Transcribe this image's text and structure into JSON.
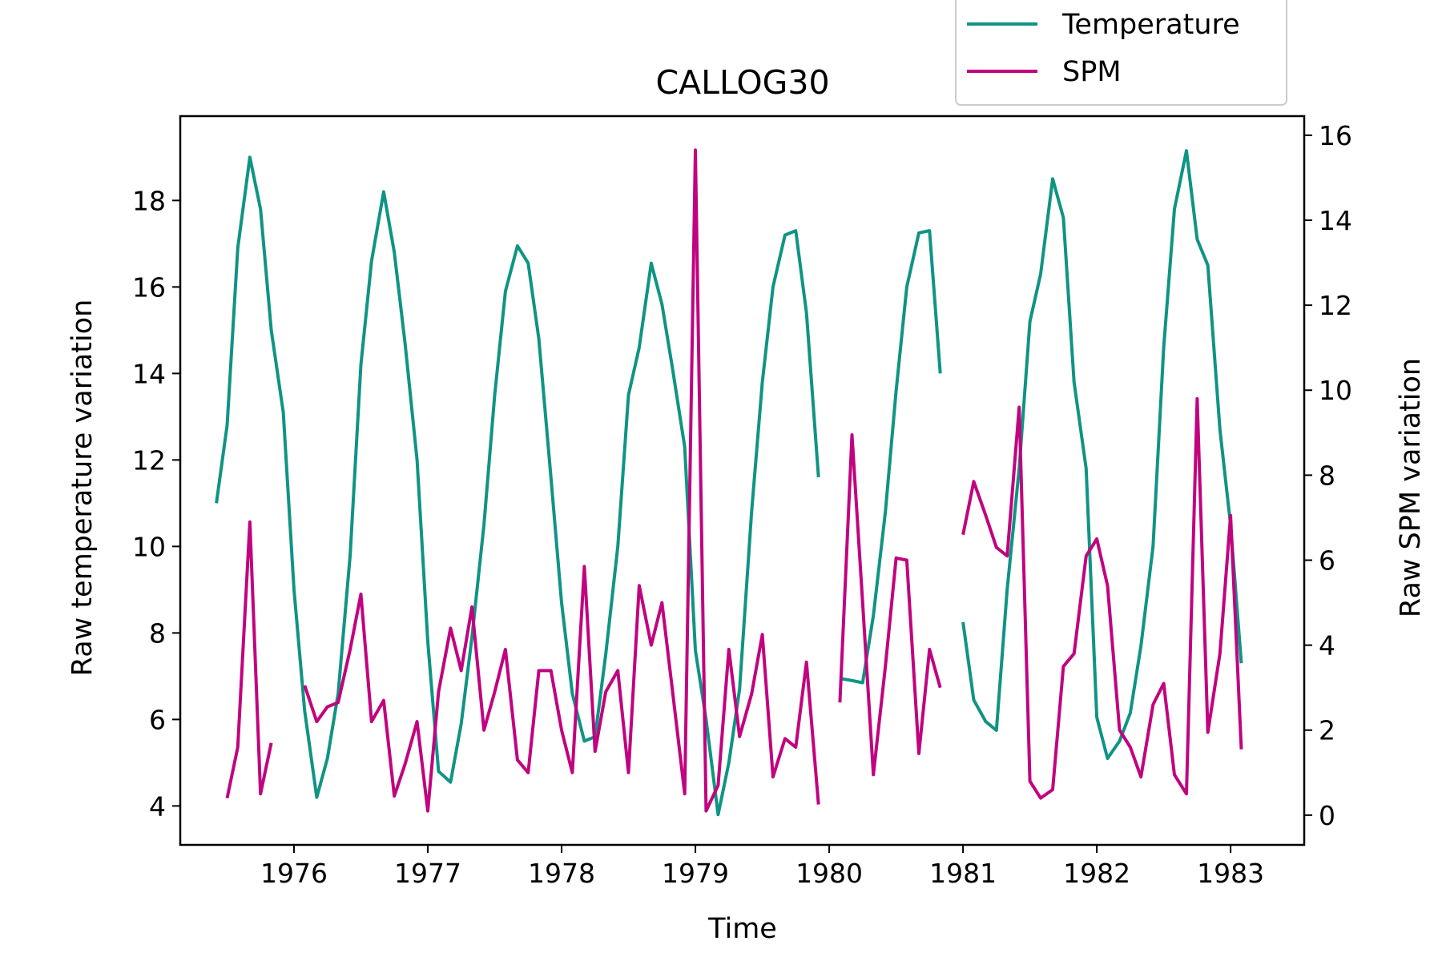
{
  "chart_data": {
    "type": "line",
    "title": "CALLOG30",
    "xlabel": "Time",
    "ylabel_left": "Raw temperature variation",
    "ylabel_right": "Raw SPM variation",
    "xlim": [
      1975.15,
      1983.55
    ],
    "ylim_left": [
      3.1,
      19.95
    ],
    "ylim_right": [
      -0.7,
      16.45
    ],
    "x_ticks": [
      1976,
      1977,
      1978,
      1979,
      1980,
      1981,
      1982,
      1983
    ],
    "x_tick_labels": [
      "1976",
      "1977",
      "1978",
      "1979",
      "1980",
      "1981",
      "1982",
      "1983"
    ],
    "y_ticks_left": [
      4,
      6,
      8,
      10,
      12,
      14,
      16,
      18
    ],
    "y_tick_labels_left": [
      "4",
      "6",
      "8",
      "10",
      "12",
      "14",
      "16",
      "18"
    ],
    "y_ticks_right": [
      0,
      2,
      4,
      6,
      8,
      10,
      12,
      14,
      16
    ],
    "y_tick_labels_right": [
      "0",
      "2",
      "4",
      "6",
      "8",
      "10",
      "12",
      "14",
      "16"
    ],
    "grid": false,
    "legend_position": "top-right-outside",
    "series": [
      {
        "name": "Temperature",
        "axis": "left",
        "color": "#0f9484",
        "segments": [
          {
            "x": [
              1975.42,
              1975.5,
              1975.58,
              1975.67,
              1975.75,
              1975.83,
              1975.92,
              1976.0,
              1976.08,
              1976.17,
              1976.25,
              1976.33,
              1976.42,
              1976.5,
              1976.58,
              1976.67,
              1976.75,
              1976.83,
              1976.92,
              1977.0,
              1977.08,
              1977.17,
              1977.25,
              1977.33,
              1977.42,
              1977.5,
              1977.58,
              1977.67,
              1977.75,
              1977.83,
              1977.92,
              1978.0,
              1978.08,
              1978.17,
              1978.25,
              1978.33,
              1978.42,
              1978.5,
              1978.58,
              1978.67,
              1978.75,
              1978.83,
              1978.92,
              1979.0,
              1979.08,
              1979.17,
              1979.25,
              1979.33,
              1979.42,
              1979.5,
              1979.58,
              1979.67,
              1979.75,
              1979.83,
              1979.92
            ],
            "y": [
              11.0,
              12.8,
              16.9,
              19.0,
              17.8,
              15.0,
              13.1,
              9.0,
              6.2,
              4.2,
              5.1,
              6.6,
              9.8,
              14.2,
              16.6,
              18.2,
              16.8,
              14.7,
              12.0,
              7.8,
              4.8,
              4.55,
              5.9,
              7.9,
              10.5,
              13.5,
              15.9,
              16.95,
              16.55,
              14.8,
              11.6,
              8.7,
              6.6,
              5.5,
              5.6,
              7.5,
              10.0,
              13.5,
              14.6,
              16.55,
              15.6,
              14.1,
              12.3,
              7.6,
              6.0,
              3.8,
              5.0,
              6.7,
              10.8,
              13.8,
              16.0,
              17.2,
              17.3,
              15.4,
              11.6
            ]
          },
          {
            "x": [
              1980.08,
              1980.17,
              1980.25,
              1980.33,
              1980.42,
              1980.5,
              1980.58,
              1980.67,
              1980.75,
              1980.83
            ],
            "y": [
              6.95,
              6.9,
              6.85,
              8.4,
              10.8,
              13.6,
              16.0,
              17.25,
              17.3,
              14.0
            ]
          },
          {
            "x": [
              1981.0,
              1981.08,
              1981.17,
              1981.25,
              1981.33,
              1981.42,
              1981.5,
              1981.58,
              1981.67,
              1981.75,
              1981.83,
              1981.92,
              1982.0,
              1982.08,
              1982.17,
              1982.25,
              1982.33,
              1982.42,
              1982.5,
              1982.58,
              1982.67,
              1982.75,
              1982.83,
              1982.92,
              1983.0,
              1983.08
            ],
            "y": [
              8.25,
              6.45,
              5.95,
              5.75,
              9.0,
              11.8,
              15.2,
              16.3,
              18.5,
              17.6,
              13.8,
              11.8,
              6.05,
              5.1,
              5.5,
              6.15,
              7.7,
              10.0,
              14.6,
              17.8,
              19.15,
              17.1,
              16.5,
              12.7,
              10.5,
              7.3
            ]
          }
        ]
      },
      {
        "name": "SPM",
        "axis": "right",
        "color": "#c1037f",
        "segments": [
          {
            "x": [
              1975.5,
              1975.58,
              1975.67,
              1975.75,
              1975.83
            ],
            "y": [
              0.4,
              1.6,
              6.9,
              0.5,
              1.7
            ]
          },
          {
            "x": [
              1976.08,
              1976.17,
              1976.25,
              1976.33,
              1976.42,
              1976.5,
              1976.58,
              1976.67,
              1976.75,
              1976.83,
              1976.92,
              1977.0,
              1977.08,
              1977.17,
              1977.25,
              1977.33,
              1977.42,
              1977.5,
              1977.58,
              1977.67,
              1977.75,
              1977.83,
              1977.92,
              1978.0,
              1978.08,
              1978.17,
              1978.25,
              1978.33,
              1978.42,
              1978.5,
              1978.58,
              1978.67,
              1978.75,
              1978.83,
              1978.92,
              1979.0,
              1979.08,
              1979.17,
              1979.25,
              1979.33,
              1979.42,
              1979.5,
              1979.58,
              1979.67,
              1979.75,
              1979.83,
              1979.92
            ],
            "y": [
              3.05,
              2.2,
              2.55,
              2.65,
              3.9,
              5.2,
              2.2,
              2.7,
              0.45,
              1.2,
              2.2,
              0.1,
              2.9,
              4.4,
              3.4,
              4.9,
              2.0,
              2.9,
              3.9,
              1.3,
              1.0,
              3.4,
              3.4,
              2.0,
              1.0,
              5.85,
              1.5,
              2.9,
              3.4,
              1.0,
              5.4,
              4.0,
              5.0,
              2.9,
              0.5,
              15.65,
              0.1,
              0.7,
              3.9,
              1.85,
              2.85,
              4.25,
              0.9,
              1.8,
              1.6,
              3.6,
              0.25
            ]
          },
          {
            "x": [
              1980.08,
              1980.17,
              1980.25,
              1980.33,
              1980.42,
              1980.5,
              1980.58,
              1980.67,
              1980.75,
              1980.83
            ],
            "y": [
              2.65,
              8.95,
              5.0,
              0.95,
              3.5,
              6.05,
              6.0,
              1.45,
              3.9,
              3.0
            ]
          },
          {
            "x": [
              1981.0,
              1981.08,
              1981.17,
              1981.25,
              1981.33,
              1981.42,
              1981.5,
              1981.58,
              1981.67,
              1981.75,
              1981.83,
              1981.92,
              1982.0,
              1982.08,
              1982.17,
              1982.25,
              1982.33,
              1982.42,
              1982.5,
              1982.58,
              1982.67,
              1982.75,
              1982.83,
              1982.92,
              1983.0,
              1983.08
            ],
            "y": [
              6.6,
              7.85,
              7.05,
              6.3,
              6.1,
              9.6,
              0.8,
              0.4,
              0.6,
              3.5,
              3.8,
              6.1,
              6.5,
              5.4,
              2.0,
              1.6,
              0.9,
              2.6,
              3.1,
              0.95,
              0.5,
              9.8,
              1.95,
              3.8,
              7.05,
              1.55
            ]
          }
        ]
      }
    ]
  }
}
